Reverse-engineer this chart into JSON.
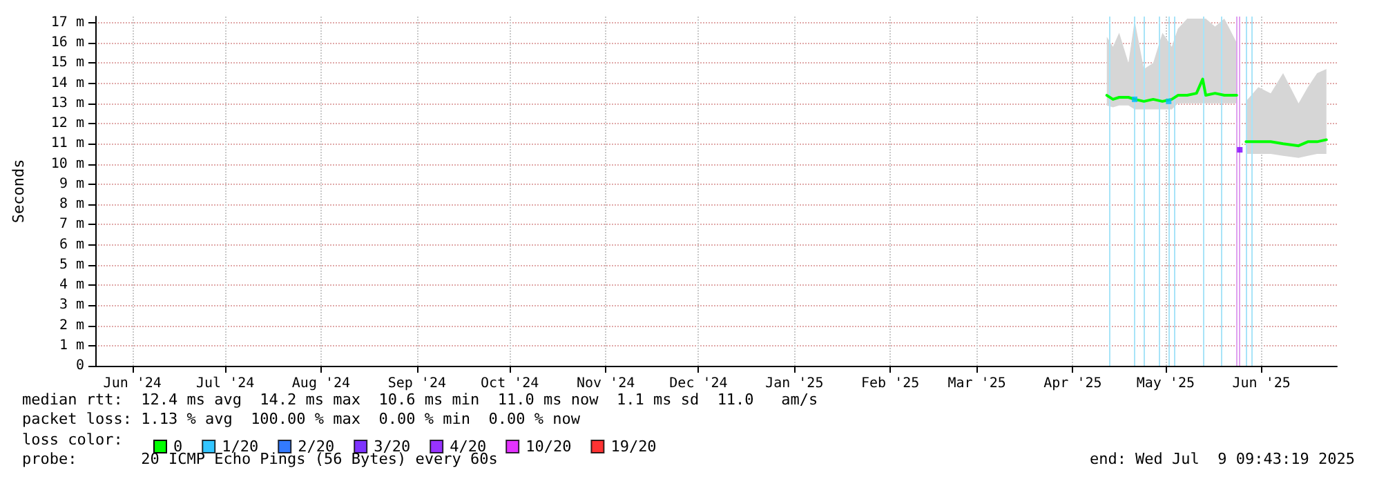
{
  "chart_data": {
    "type": "line",
    "ylabel": "Seconds",
    "legend_title": "loss color:",
    "legend": "bottom left",
    "grid": true,
    "line_style": "solid",
    "xlim": [
      "2024-06-03",
      "2025-07-09T09:43"
    ],
    "xticks": [
      {
        "value": "2024-06-15",
        "label": "Jun '24"
      },
      {
        "value": "2024-07-15",
        "label": "Jul '24"
      },
      {
        "value": "2024-08-15",
        "label": "Aug '24"
      },
      {
        "value": "2024-09-15",
        "label": "Sep '24"
      },
      {
        "value": "2024-10-15",
        "label": "Oct '24"
      },
      {
        "value": "2024-11-15",
        "label": "Nov '24"
      },
      {
        "value": "2024-12-15",
        "label": "Dec '24"
      },
      {
        "value": "2025-01-15",
        "label": "Jan '25"
      },
      {
        "value": "2025-02-15",
        "label": "Feb '25"
      },
      {
        "value": "2025-03-15",
        "label": "Mar '25"
      },
      {
        "value": "2025-04-15",
        "label": "Apr '25"
      },
      {
        "value": "2025-05-15",
        "label": "May '25"
      },
      {
        "value": "2025-06-15",
        "label": "Jun '25"
      }
    ],
    "ylim": [
      0,
      17.3
    ],
    "yticks": [
      0,
      {
        "value": 1,
        "label": "1 m"
      },
      {
        "value": 2,
        "label": "2 m"
      },
      {
        "value": 3,
        "label": "3 m"
      },
      {
        "value": 4,
        "label": "4 m"
      },
      {
        "value": 5,
        "label": "5 m"
      },
      {
        "value": 6,
        "label": "6 m"
      },
      {
        "value": 7,
        "label": "7 m"
      },
      {
        "value": 8,
        "label": "8 m"
      },
      {
        "value": 9,
        "label": "9 m"
      },
      {
        "value": 10,
        "label": "10 m"
      },
      {
        "value": 11,
        "label": "11 m"
      },
      {
        "value": 12,
        "label": "12 m"
      },
      {
        "value": 13,
        "label": "13 m"
      },
      {
        "value": 14,
        "label": "14 m"
      },
      {
        "value": 15,
        "label": "15 m"
      },
      {
        "value": 16,
        "label": "16 m"
      },
      {
        "value": 17,
        "label": "17 m"
      }
    ],
    "series": [
      {
        "name": "0",
        "color": "#00ff00",
        "x": [
          "2025-04-26",
          "2025-04-28",
          "2025-04-30",
          "2025-05-03",
          "2025-05-05",
          "2025-05-08",
          "2025-05-11",
          "2025-05-14",
          "2025-05-17",
          "2025-05-19",
          "2025-05-22",
          "2025-05-25",
          "2025-05-27",
          "2025-05-28",
          "2025-05-31",
          "2025-06-03",
          "2025-06-07",
          "2025-06-08",
          "2025-06-10",
          "2025-06-14",
          "2025-06-18",
          "2025-06-22",
          "2025-06-27",
          "2025-06-30",
          "2025-07-03",
          "2025-07-06"
        ],
        "values": [
          13.4,
          13.2,
          13.3,
          13.3,
          13.2,
          13.1,
          13.2,
          13.1,
          13.2,
          13.4,
          13.4,
          13.5,
          14.2,
          13.4,
          13.5,
          13.4,
          13.4,
          null,
          11.1,
          11.1,
          11.1,
          11.0,
          10.9,
          11.1,
          11.1,
          11.2
        ],
        "lower": [
          12.9,
          12.8,
          12.9,
          12.9,
          12.7,
          12.7,
          12.7,
          12.7,
          12.7,
          13.0,
          13.0,
          13.0,
          13.0,
          13.0,
          13.0,
          13.0,
          13.0,
          null,
          10.5,
          10.5,
          10.5,
          10.4,
          10.3,
          10.4,
          10.5,
          10.5
        ],
        "upper": [
          16.3,
          15.8,
          16.5,
          15.0,
          17.1,
          14.7,
          15.0,
          16.5,
          15.8,
          16.7,
          17.2,
          17.2,
          17.2,
          17.2,
          16.8,
          17.2,
          16.0,
          null,
          13.1,
          13.8,
          13.5,
          14.5,
          13.0,
          13.8,
          14.5,
          14.7
        ]
      },
      {
        "name": "1/20",
        "color": "#00b8ff",
        "type": "scatter",
        "marker": "square",
        "x": [
          "2025-05-05",
          "2025-05-16"
        ],
        "values": [
          13.2,
          13.1
        ]
      },
      {
        "name": "2/20",
        "color": "#0059ff",
        "type": "scatter"
      },
      {
        "name": "3/20",
        "color": "#5e00ff",
        "type": "scatter"
      },
      {
        "name": "4/20",
        "color": "#7e00ff",
        "type": "scatter",
        "marker": "square",
        "x": [
          "2025-06-08"
        ],
        "values": [
          10.7
        ]
      },
      {
        "name": "10/20",
        "color": "#dd00ff",
        "type": "scatter"
      },
      {
        "name": "19/20",
        "color": "#ff0000",
        "type": "scatter"
      }
    ],
    "ref_lines": [
      {
        "axis": "x",
        "value": "2025-04-27",
        "color": "#a8e4f8"
      },
      {
        "axis": "x",
        "value": "2025-05-05",
        "color": "#a8e4f8"
      },
      {
        "axis": "x",
        "value": "2025-05-08",
        "color": "#a8e4f8"
      },
      {
        "axis": "x",
        "value": "2025-05-13",
        "color": "#a8e4f8"
      },
      {
        "axis": "x",
        "value": "2025-05-16",
        "color": "#a8e4f8"
      },
      {
        "axis": "x",
        "value": "2025-05-18",
        "color": "#a8e4f8"
      },
      {
        "axis": "x",
        "value": "2025-05-27",
        "color": "#a8e4f8"
      },
      {
        "axis": "x",
        "value": "2025-06-02",
        "color": "#a8e4f8"
      },
      {
        "axis": "x",
        "value": "2025-06-07",
        "color": "#e0a0f0"
      },
      {
        "axis": "x",
        "value": "2025-06-08",
        "color": "#e0a0f0"
      },
      {
        "axis": "x",
        "value": "2025-06-10",
        "color": "#a8e4f8"
      },
      {
        "axis": "x",
        "value": "2025-06-12",
        "color": "#a8e4f8"
      }
    ],
    "annotations": [
      "median rtt:  12.4 ms avg  14.2 ms max  10.6 ms min  11.0 ms now  1.1 ms sd  11.0   am/s",
      "packet loss: 1.13 % avg  100.00 % max  0.00 % min  0.00 % now",
      "probe:       20 ICMP Echo Pings (56 Bytes) every 60s",
      "end: Wed Jul  9 09:43:19 2025"
    ]
  }
}
